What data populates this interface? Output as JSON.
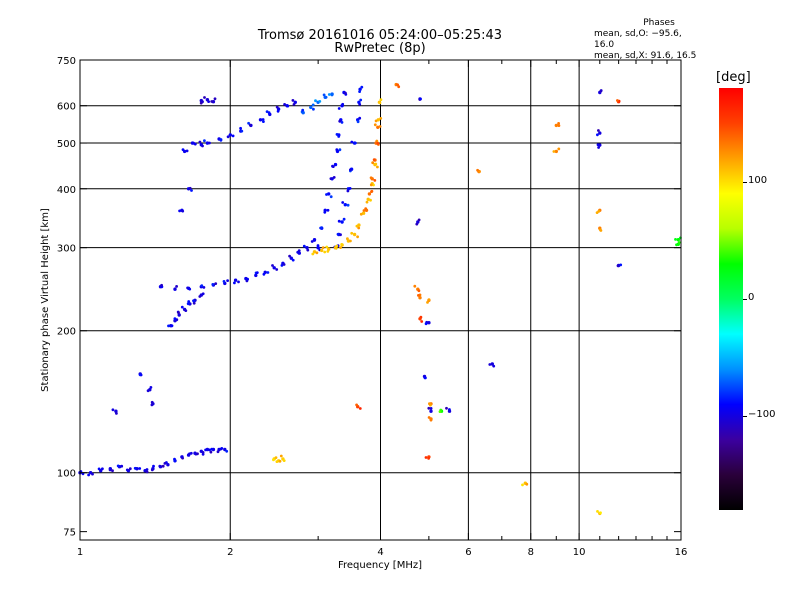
{
  "title_line1": "Tromsø 20161016 05:24:00–05:25:43",
  "title_line2": "RwPretec (8p)",
  "phases": {
    "header": "Phases",
    "line_o": "mean, sd,O: −95.6, 16.0",
    "line_x": "mean, sd,X:  91.6, 16.5"
  },
  "colorbar": {
    "unit_label": "[deg]",
    "ticks": [
      {
        "label": "100",
        "value": 100
      },
      {
        "label": "0",
        "value": 0
      },
      {
        "label": "−100",
        "value": -100
      }
    ],
    "range": [
      -180,
      180
    ],
    "colors": [
      "#000000",
      "#2a003a",
      "#3b00a0",
      "#0000ff",
      "#0090ff",
      "#00ffff",
      "#00ff60",
      "#00ff00",
      "#b8ff00",
      "#ffff00",
      "#ffa000",
      "#ff4000",
      "#ff0000"
    ]
  },
  "chart_data": {
    "type": "scatter",
    "title": "Tromsø 20161016 05:24:00–05:25:43",
    "subtitle": "RwPretec (8p)",
    "xlabel": "Frequency [MHz]",
    "ylabel": "Stationary phase Virtual Height [km]",
    "x_scale": "log",
    "y_scale": "log",
    "xlim": [
      1,
      16
    ],
    "ylim": [
      72,
      750
    ],
    "grid": true,
    "xticks": [
      {
        "label": "1",
        "value": 1
      },
      {
        "label": "2",
        "value": 2
      },
      {
        "label": "4",
        "value": 4
      },
      {
        "label": "6",
        "value": 6
      },
      {
        "label": "8",
        "value": 8
      },
      {
        "label": "10",
        "value": 10
      },
      {
        "label": "16",
        "value": 16
      }
    ],
    "xgrid": [
      2,
      4,
      6,
      8,
      10
    ],
    "xminor": [
      3,
      5,
      7,
      9,
      11,
      12,
      13,
      14,
      15
    ],
    "yticks": [
      {
        "label": "75",
        "value": 75
      },
      {
        "label": "100",
        "value": 100
      },
      {
        "label": "200",
        "value": 200
      },
      {
        "label": "300",
        "value": 300
      },
      {
        "label": "400",
        "value": 400
      },
      {
        "label": "500",
        "value": 500
      },
      {
        "label": "600",
        "value": 600
      },
      {
        "label": "750",
        "value": 750
      }
    ],
    "ygrid": [
      100,
      200,
      300,
      400,
      500,
      600
    ],
    "color_value": "phase (deg)",
    "traces": [
      {
        "phase": -98,
        "points": [
          [
            1.0,
            100
          ],
          [
            1.05,
            100
          ],
          [
            1.1,
            101
          ],
          [
            1.15,
            102
          ],
          [
            1.2,
            103
          ],
          [
            1.25,
            101
          ],
          [
            1.3,
            102
          ],
          [
            1.35,
            101
          ],
          [
            1.4,
            102
          ],
          [
            1.45,
            103
          ],
          [
            1.5,
            104
          ],
          [
            1.55,
            106
          ],
          [
            1.6,
            108
          ],
          [
            1.65,
            109
          ],
          [
            1.7,
            110
          ],
          [
            1.75,
            111
          ],
          [
            1.8,
            112
          ],
          [
            1.85,
            112
          ],
          [
            1.9,
            112
          ],
          [
            1.95,
            112
          ]
        ]
      },
      {
        "phase": -100,
        "points": [
          [
            1.18,
            135
          ],
          [
            1.32,
            162
          ],
          [
            1.38,
            150
          ],
          [
            1.4,
            140
          ]
        ]
      },
      {
        "phase": -100,
        "points": [
          [
            1.52,
            205
          ],
          [
            1.55,
            210
          ],
          [
            1.58,
            216
          ],
          [
            1.62,
            222
          ],
          [
            1.66,
            228
          ],
          [
            1.7,
            232
          ],
          [
            1.75,
            238
          ]
        ]
      },
      {
        "phase": -96,
        "points": [
          [
            1.45,
            248
          ],
          [
            1.55,
            245
          ],
          [
            1.65,
            246
          ],
          [
            1.75,
            248
          ],
          [
            1.85,
            250
          ],
          [
            1.95,
            252
          ],
          [
            2.05,
            256
          ],
          [
            2.15,
            258
          ],
          [
            2.25,
            262
          ],
          [
            2.35,
            266
          ],
          [
            2.45,
            272
          ],
          [
            2.55,
            278
          ],
          [
            2.65,
            285
          ],
          [
            2.75,
            292
          ],
          [
            2.85,
            300
          ],
          [
            2.95,
            312
          ]
        ]
      },
      {
        "phase": -95,
        "points": [
          [
            1.6,
            360
          ],
          [
            1.65,
            400
          ],
          [
            1.62,
            480
          ],
          [
            1.68,
            500
          ],
          [
            1.75,
            496
          ],
          [
            1.8,
            500
          ],
          [
            1.9,
            510
          ],
          [
            2.0,
            520
          ],
          [
            2.1,
            530
          ],
          [
            2.2,
            545
          ],
          [
            2.3,
            560
          ],
          [
            2.4,
            575
          ],
          [
            2.5,
            590
          ],
          [
            2.6,
            600
          ],
          [
            2.7,
            610
          ]
        ]
      },
      {
        "phase": -102,
        "points": [
          [
            1.75,
            615
          ],
          [
            1.8,
            618
          ],
          [
            1.85,
            612
          ]
        ]
      },
      {
        "phase": -70,
        "points": [
          [
            2.8,
            580
          ],
          [
            2.9,
            595
          ],
          [
            3.0,
            610
          ],
          [
            3.1,
            625
          ],
          [
            3.2,
            635
          ]
        ]
      },
      {
        "phase": -92,
        "points": [
          [
            3.0,
            300
          ],
          [
            3.05,
            330
          ],
          [
            3.1,
            360
          ],
          [
            3.15,
            390
          ],
          [
            3.2,
            420
          ],
          [
            3.25,
            450
          ],
          [
            3.28,
            480
          ],
          [
            3.3,
            520
          ],
          [
            3.33,
            560
          ],
          [
            3.35,
            600
          ],
          [
            3.38,
            640
          ]
        ]
      },
      {
        "phase": -88,
        "points": [
          [
            3.25,
            300
          ],
          [
            3.3,
            320
          ],
          [
            3.35,
            340
          ],
          [
            3.4,
            370
          ],
          [
            3.45,
            400
          ],
          [
            3.5,
            440
          ],
          [
            3.55,
            500
          ],
          [
            3.6,
            560
          ],
          [
            3.62,
            610
          ],
          [
            3.64,
            650
          ]
        ]
      },
      {
        "phase": 110,
        "points": [
          [
            2.95,
            294
          ],
          [
            3.05,
            296
          ],
          [
            3.15,
            298
          ],
          [
            3.25,
            300
          ],
          [
            3.35,
            304
          ],
          [
            3.45,
            310
          ],
          [
            3.55,
            320
          ],
          [
            3.62,
            335
          ],
          [
            3.7,
            355
          ],
          [
            3.78,
            380
          ],
          [
            3.85,
            410
          ],
          [
            3.9,
            450
          ],
          [
            3.93,
            500
          ],
          [
            3.96,
            560
          ],
          [
            3.98,
            610
          ]
        ]
      },
      {
        "phase": 135,
        "points": [
          [
            3.75,
            360
          ],
          [
            3.8,
            390
          ],
          [
            3.85,
            420
          ],
          [
            3.9,
            460
          ],
          [
            3.92,
            500
          ],
          [
            3.95,
            540
          ]
        ]
      },
      {
        "phase": 105,
        "points": [
          [
            2.45,
            107
          ],
          [
            2.5,
            106
          ],
          [
            2.55,
            107
          ]
        ]
      },
      {
        "phase": 130,
        "points": [
          [
            4.3,
            665
          ],
          [
            4.75,
            245
          ],
          [
            4.8,
            235
          ],
          [
            5.0,
            232
          ],
          [
            5.05,
            140
          ],
          [
            5.05,
            130
          ],
          [
            6.3,
            435
          ],
          [
            9.0,
            545
          ],
          [
            9.0,
            480
          ],
          [
            11.0,
            360
          ],
          [
            11.0,
            330
          ]
        ]
      },
      {
        "phase": -100,
        "points": [
          [
            4.8,
            620
          ],
          [
            4.75,
            340
          ],
          [
            4.9,
            160
          ],
          [
            5.05,
            135
          ],
          [
            5.5,
            135
          ],
          [
            6.7,
            170
          ],
          [
            11.0,
            640
          ],
          [
            11.0,
            525
          ],
          [
            11.0,
            495
          ],
          [
            12.0,
            275
          ],
          [
            5.0,
            208
          ]
        ]
      },
      {
        "phase": 30,
        "points": [
          [
            5.3,
            135
          ],
          [
            15.8,
            305
          ],
          [
            15.8,
            312
          ]
        ]
      },
      {
        "phase": 150,
        "points": [
          [
            3.6,
            138
          ],
          [
            4.8,
            212
          ],
          [
            5.0,
            108
          ],
          [
            12.0,
            612
          ]
        ]
      },
      {
        "phase": 110,
        "points": [
          [
            7.8,
            95
          ],
          [
            11.0,
            82
          ]
        ]
      }
    ]
  }
}
